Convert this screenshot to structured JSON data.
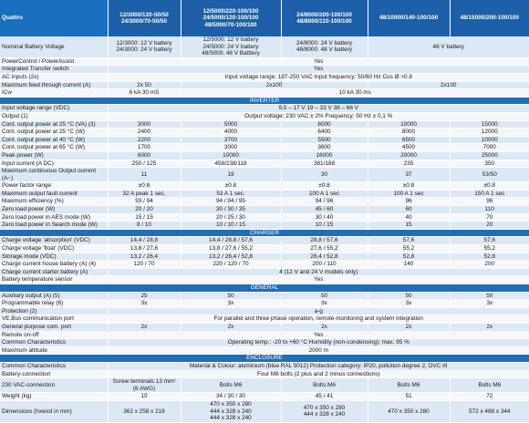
{
  "table": {
    "header": [
      "Quattro",
      "12/3000/120-50/50\n24/3000/70-50/50",
      "12/5000/220-100/100\n24/5000/120-100/100\n48/5000/70-100/100",
      "24/8000/200-100/100\n48/8000/110-100/100",
      "48/10000/140-100/100",
      "48/15000/200-100/100"
    ],
    "rows": [
      {
        "label": "Nominal Battery Voltage",
        "cells": [
          "12/3000: 12 V battery\n24/3000: 24 V battery",
          "12/5000: 12 V battery\n24/5000: 24 V battery\n48/5000: 48 V Batttery",
          "24/8000: 24 V battery\n48/8000: 48 V battery",
          "48 V battery"
        ]
      },
      {
        "label": "PowerControl / PowerAssist",
        "cells": [
          "Yes"
        ]
      },
      {
        "label": "Integrated Transfer switch",
        "cells": [
          "Yes"
        ]
      },
      {
        "label": "AC inputs (2x)",
        "cells": [
          "Input voltage range: 187-250 VAC     Input frequency: 50/60 Hz     Cos Ø >0.8"
        ]
      },
      {
        "label": "Maximum feed through current (A)",
        "cells": [
          "2x 50",
          "2x100",
          "2x100"
        ]
      },
      {
        "label": "ICw",
        "cells": [
          "6 kA 30 mS",
          "10 kA 30 ms"
        ]
      }
    ],
    "sections": [
      {
        "title": "INVERTER",
        "rows": [
          {
            "label": "Input voltage range (VDC)",
            "cells": [
              "9,5 – 17 V     19 – 33 V     38 – 66 V"
            ]
          },
          {
            "label": "Output (1)",
            "cells": [
              "Output voltage: 230 VAC ± 2%        Frequency: 50 Hz ± 0,1 %"
            ]
          },
          {
            "label": "Cont. output power at 25 °C (VA) (3)",
            "cells": [
              "3000",
              "5000",
              "8000",
              "10000",
              "15000"
            ]
          },
          {
            "label": "Cont. output power at 25 °C (W)",
            "cells": [
              "2400",
              "4000",
              "6400",
              "8000",
              "12000"
            ]
          },
          {
            "label": "Cont. output power at 40 °C (W)",
            "cells": [
              "2200",
              "3700",
              "5500",
              "6500",
              "10000"
            ]
          },
          {
            "label": "Cont. output power at 65 °C (W)",
            "cells": [
              "1700",
              "3000",
              "3600",
              "4500",
              "7000"
            ]
          },
          {
            "label": "Peak power (W)",
            "cells": [
              "6000",
              "10000",
              "16000",
              "20000",
              "25000"
            ]
          },
          {
            "label": "Input current (A DC)",
            "cells": [
              "250 / 125",
              "458/238/118",
              "381/188",
              "235",
              "350"
            ]
          },
          {
            "label": "Maximum continuous Output current (A~)",
            "cells": [
              "11",
              "19",
              "30",
              "37",
              "53/50"
            ]
          },
          {
            "label": "Power factor range",
            "cells": [
              "±0.8",
              "±0.8",
              "±0.8",
              "±0.8",
              "±0.8"
            ]
          },
          {
            "label": "Maximum output fault current",
            "cells": [
              "32 A peak 1 sec.",
              "53 A 1 sec.",
              "100 A 1 sec",
              "100 A 1 sec",
              "150 A 1 sec"
            ]
          },
          {
            "label": "Maximum efficiency (%)",
            "cells": [
              "93 / 94",
              "94 / 94 / 95",
              "94 / 96",
              "96",
              "96"
            ]
          },
          {
            "label": "Zero load power (W)",
            "cells": [
              "20 / 20",
              "30 / 30 / 35",
              "45 / 60",
              "60",
              "110"
            ]
          },
          {
            "label": "Zero load power in AES mode (W)",
            "cells": [
              "15 / 15",
              "20 / 25 / 30",
              "30 / 40",
              "40",
              "70"
            ]
          },
          {
            "label": "Zero load power in Search mode (W)",
            "cells": [
              "8 / 10",
              "10 / 10 / 15",
              "10 / 15",
              "15",
              "20"
            ]
          }
        ]
      },
      {
        "title": "CHARGER",
        "rows": [
          {
            "label": "Charge voltage 'absorption' (VDC)",
            "cells": [
              "14,4 / 28,8",
              "14,4 / 28,8 / 57,6",
              "28,8 / 57,6",
              "57,6",
              "57,6"
            ]
          },
          {
            "label": "Charge voltage 'float' (VDC)",
            "cells": [
              "13,8 / 27,6",
              "13,8 / 27,6 / 55,2",
              "27,6 / 55,2",
              "55,2",
              "55,2"
            ]
          },
          {
            "label": "Storage mode (VDC)",
            "cells": [
              "13,2 / 26,4",
              "13,2 / 26,4 / 52,8",
              "26,4 / 52,8",
              "52,8",
              "52,8"
            ]
          },
          {
            "label": "Charge current house battery (A) (4)",
            "cells": [
              "120 / 70",
              "220 / 120 / 70",
              "200 / 110",
              "140",
              "200"
            ]
          },
          {
            "label": "Charge current starter battery (A)",
            "cells": [
              "4 (12 V and 24 V models only)"
            ]
          },
          {
            "label": "Battery temperature sensor",
            "cells": [
              "Yes"
            ]
          }
        ]
      },
      {
        "title": "GENERAL",
        "rows": [
          {
            "label": "Auxiliary output (A) (5)",
            "cells": [
              "25",
              "50",
              "50",
              "50",
              "50"
            ]
          },
          {
            "label": "Programmable relay (6)",
            "cells": [
              "3x",
              "3x",
              "3x",
              "3x",
              "3x"
            ]
          },
          {
            "label": "Protection (2)",
            "cells": [
              "a-g"
            ]
          },
          {
            "label": "VE.Bus communication port",
            "cells": [
              "For parallel and three phase operation, remote monitoring and system integration"
            ]
          },
          {
            "label": "General purpose com. port",
            "cells": [
              "2x",
              "2x",
              "2x",
              "2x",
              "2x"
            ]
          },
          {
            "label": "Remote on-off",
            "cells": [
              "Yes"
            ]
          },
          {
            "label": "Common Characteristics",
            "cells": [
              "Operating temp.: -20 to +60 °C     Humidity (non-condensing): max. 95 %"
            ]
          },
          {
            "label": "Maximum altitude",
            "cells": [
              "2000 m"
            ]
          }
        ]
      },
      {
        "title": "ENCLOSURE",
        "rows": [
          {
            "label": "Common Characteristics",
            "cells": [
              "Material & Colour: aluminium (blue RAL 5012)     Protection category: IP20, pollution degree 2, OVC III"
            ]
          },
          {
            "label": "Battery-connection",
            "cells": [
              "Four M8 bolts (2 plus and 2 minus connections)"
            ]
          },
          {
            "label": "230 VAC-connection",
            "cells": [
              "Screw terminals 13 mm² (6 AWG)",
              "Bolts M6",
              "Bolts M6",
              "Bolts M6",
              "Bolts M6"
            ]
          },
          {
            "label": "Weight (kg)",
            "cells": [
              "19",
              "34 / 30 / 30",
              "45 / 41",
              "51",
              "72"
            ]
          },
          {
            "label": "Dimensions (hxwxd in mm)",
            "cells": [
              "362 x 258 x 218",
              "470 x 350 x 280\n444 x 328 x 240\n444 x 328 x 240",
              "470 x 350 x 280\n444 x 328 x 240",
              "470 x 350 x 280",
              "572 x 488 x 344"
            ]
          }
        ]
      }
    ]
  }
}
